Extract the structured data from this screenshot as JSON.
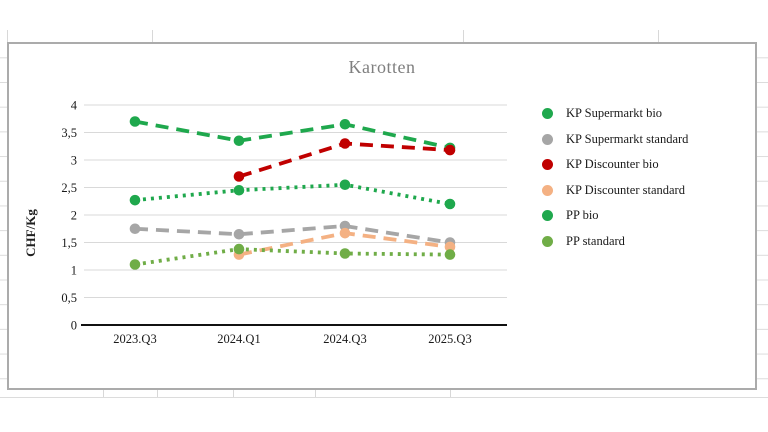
{
  "chart_data": {
    "type": "line",
    "title": "Karotten",
    "ylabel": "CHF/Kg",
    "categories": [
      "2023.Q3",
      "2024.Q1",
      "2024.Q3",
      "2025.Q3"
    ],
    "series": [
      {
        "name": "KP Supermarkt bio",
        "color": "#1FA84D",
        "style": "dashed",
        "values": [
          3.7,
          3.35,
          3.65,
          3.22
        ]
      },
      {
        "name": "KP Supermarkt standard",
        "color": "#A6A6A6",
        "style": "dashed",
        "values": [
          1.75,
          1.65,
          1.8,
          1.5
        ]
      },
      {
        "name": "KP Discounter bio",
        "color": "#C00000",
        "style": "dashed",
        "values": [
          null,
          2.7,
          3.3,
          3.18
        ]
      },
      {
        "name": "KP Discounter standard",
        "color": "#F4B183",
        "style": "dashed",
        "values": [
          null,
          1.28,
          1.67,
          1.42
        ]
      },
      {
        "name": "PP bio",
        "color": "#1FA84D",
        "style": "dotted",
        "values": [
          2.27,
          2.45,
          2.55,
          2.2
        ]
      },
      {
        "name": "PP standard",
        "color": "#70AD47",
        "style": "dotted",
        "values": [
          1.1,
          1.38,
          1.3,
          1.28
        ]
      }
    ],
    "ylim": [
      0,
      4
    ],
    "y_tick_step": 0.5,
    "y_ticks": [
      "0",
      "0,5",
      "1",
      "1,5",
      "2",
      "2,5",
      "3",
      "3,5",
      "4"
    ],
    "grid": true,
    "legend_position": "right"
  },
  "colors": {
    "grid_line": "#D9D9D9",
    "axis_line": "#111111",
    "tick_text": "#1A1A1A",
    "title_text": "#7F7F7F",
    "chart_border": "#ABABAB",
    "sheet_grid": "#DCDCDC"
  }
}
